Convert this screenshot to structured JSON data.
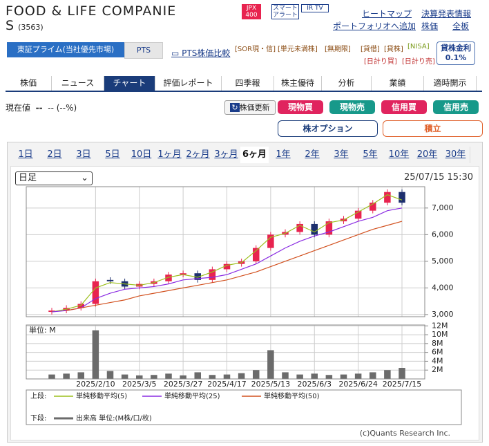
{
  "header": {
    "title": "FOOD & LIFE COMPANIE",
    "title2": "S",
    "code": "(3563)",
    "badges": [
      "JPX 400",
      "スマート アラート",
      "IR TV"
    ],
    "links": [
      "ヒートマップ",
      "決算発表情報",
      "ポートフォリオへ追加",
      "株価",
      "全板"
    ]
  },
  "market": {
    "tabs": [
      "東証プライム(当社優先市場)",
      "PTS"
    ],
    "compare": "PTS株価比較",
    "tags": [
      "[SOR現・信]",
      "[単元未満株]",
      "[無期限]",
      "[貸借]",
      "[貸株]",
      "[NISA]",
      "[日計り買]",
      "[日計り売]"
    ],
    "rate_label": "貸株金利",
    "rate": "0.1%"
  },
  "nav": {
    "tabs": [
      "株価",
      "ニュース",
      "チャート",
      "評価レポート",
      "四季報",
      "株主優待",
      "分析",
      "業績",
      "適時開示"
    ],
    "active": 2
  },
  "quote": {
    "label": "現在値",
    "price": "--",
    "change": "-- (--%)",
    "refresh": "株価更新",
    "buttons": [
      "現物買",
      "現物売",
      "信用買",
      "信用売"
    ],
    "option": "株オプション",
    "accumulate": "積立"
  },
  "ranges": {
    "tabs": [
      "1日",
      "2日",
      "3日",
      "5日",
      "10日",
      "1ヶ月",
      "2ヶ月",
      "3ヶ月",
      "6ヶ月",
      "1年",
      "2年",
      "3年",
      "5年",
      "10年",
      "20年",
      "30年"
    ],
    "active": 8
  },
  "chart_controls": {
    "period": "日足",
    "timestamp": "25/07/15 15:30"
  },
  "legend": {
    "upper": "上段:",
    "lower": "下段:"
  },
  "credit": "(c)Quants Research Inc.",
  "chart_data": [
    {
      "type": "candlestick",
      "up_color": "#e8234f",
      "down_color": "#1d2f6e",
      "open": [
        3100,
        3150,
        3250,
        3400,
        4300,
        4250,
        4050,
        4150,
        4250,
        4500,
        4550,
        4300,
        4700,
        4900,
        5000,
        5500,
        6000,
        6100,
        6400,
        6000,
        6500,
        6600,
        6900,
        7200,
        7600
      ],
      "high": [
        3250,
        3350,
        3500,
        4350,
        4400,
        4350,
        4250,
        4350,
        4600,
        4650,
        4650,
        4800,
        5000,
        5100,
        5600,
        6100,
        6200,
        6500,
        6500,
        6600,
        6700,
        7000,
        7300,
        7700,
        7700
      ],
      "low": [
        3000,
        3050,
        3150,
        3300,
        4150,
        3950,
        3950,
        4050,
        4150,
        4400,
        4200,
        4200,
        4600,
        4800,
        4900,
        5400,
        5900,
        6000,
        5900,
        5900,
        6400,
        6500,
        6800,
        7100,
        7100
      ],
      "close": [
        3150,
        3250,
        3400,
        4250,
        4250,
        4050,
        4150,
        4250,
        4500,
        4550,
        4300,
        4700,
        4900,
        5000,
        5500,
        6000,
        6100,
        6400,
        6000,
        6500,
        6600,
        6900,
        7200,
        7600,
        7200
      ],
      "series": [
        {
          "name": "単純移動平均(5)",
          "color": "#9cbf1c",
          "values": [
            3100,
            3200,
            3350,
            4000,
            4200,
            4150,
            4100,
            4200,
            4400,
            4500,
            4400,
            4600,
            4850,
            4950,
            5400,
            5900,
            6050,
            6350,
            6100,
            6450,
            6550,
            6850,
            7150,
            7500,
            7300
          ]
        },
        {
          "name": "単純移動平均(25)",
          "color": "#8a2be2",
          "values": [
            3100,
            3150,
            3250,
            3600,
            3800,
            3950,
            4000,
            4050,
            4150,
            4300,
            4350,
            4400,
            4500,
            4700,
            4900,
            5200,
            5500,
            5750,
            5950,
            6100,
            6300,
            6500,
            6650,
            6900,
            7000
          ]
        },
        {
          "name": "単純移動平均(50)",
          "color": "#d2501e",
          "values": [
            null,
            3150,
            3250,
            3350,
            3450,
            3550,
            3700,
            3800,
            3900,
            4000,
            4100,
            4200,
            4300,
            4450,
            4600,
            4800,
            5000,
            5200,
            5400,
            5600,
            5800,
            6000,
            6200,
            6350,
            6500
          ]
        }
      ],
      "ylim": [
        2920,
        7800
      ],
      "yticks": [
        {
          "value": 3000,
          "label": "3,000"
        },
        {
          "value": 4000,
          "label": "4,000"
        },
        {
          "value": 5000,
          "label": "5,000"
        },
        {
          "value": 6000,
          "label": "6,000"
        },
        {
          "value": 7000,
          "label": "7,000"
        }
      ],
      "grid": true
    },
    {
      "type": "bar",
      "name": "出来高 単位:(M株/口/枚)",
      "unit_label": "単位: M",
      "color": "#6b6b6b",
      "categories": [
        null,
        null,
        null,
        "2025/2/10",
        null,
        null,
        "2025/3/5",
        null,
        null,
        "2025/3/27",
        null,
        null,
        "2025/4/17",
        null,
        null,
        "2025/5/13",
        null,
        null,
        "2025/6/3",
        null,
        null,
        "2025/6/24",
        null,
        null,
        "2025/7/15"
      ],
      "values": [
        1,
        1.2,
        1.5,
        11,
        1.8,
        1,
        0.8,
        0.9,
        1.2,
        0.8,
        1.5,
        0.9,
        1,
        1.3,
        2,
        6.5,
        1.5,
        1,
        1.2,
        0.9,
        1,
        1.2,
        1.5,
        2,
        2.5
      ],
      "ylim": [
        0,
        12.2
      ],
      "yticks": [
        {
          "value": 2,
          "label": "2M"
        },
        {
          "value": 4,
          "label": "4M"
        },
        {
          "value": 6,
          "label": "6M"
        },
        {
          "value": 8,
          "label": "8M"
        },
        {
          "value": 10,
          "label": "10M"
        },
        {
          "value": 12,
          "label": "12M"
        }
      ],
      "grid": true
    }
  ]
}
